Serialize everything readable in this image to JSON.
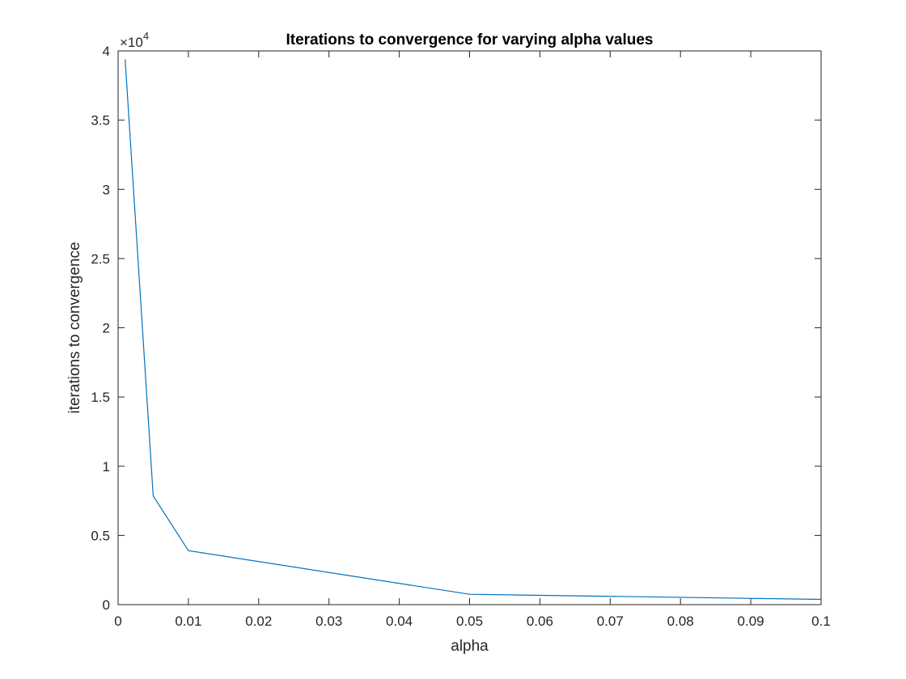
{
  "chart_data": {
    "type": "line",
    "title": "Iterations to convergence for varying alpha values",
    "xlabel": "alpha",
    "ylabel": "iterations to convergence",
    "y_exponent_prefix": "×10",
    "y_exponent_power": "4",
    "xlim": [
      0,
      0.1
    ],
    "ylim": [
      0,
      40000
    ],
    "x_ticks": [
      0,
      0.01,
      0.02,
      0.03,
      0.04,
      0.05,
      0.06,
      0.07,
      0.08,
      0.09,
      0.1
    ],
    "x_tick_labels": [
      "0",
      "0.01",
      "0.02",
      "0.03",
      "0.04",
      "0.05",
      "0.06",
      "0.07",
      "0.08",
      "0.09",
      "0.1"
    ],
    "y_ticks": [
      0,
      5000,
      10000,
      15000,
      20000,
      25000,
      30000,
      35000,
      40000
    ],
    "y_tick_labels": [
      "0",
      "0.5",
      "1",
      "1.5",
      "2",
      "2.5",
      "3",
      "3.5",
      "4"
    ],
    "grid": false,
    "series": [
      {
        "color": "#0072BD",
        "x": [
          0.001,
          0.005,
          0.01,
          0.05,
          0.1
        ],
        "y": [
          39400,
          7850,
          3900,
          750,
          380
        ]
      }
    ]
  }
}
